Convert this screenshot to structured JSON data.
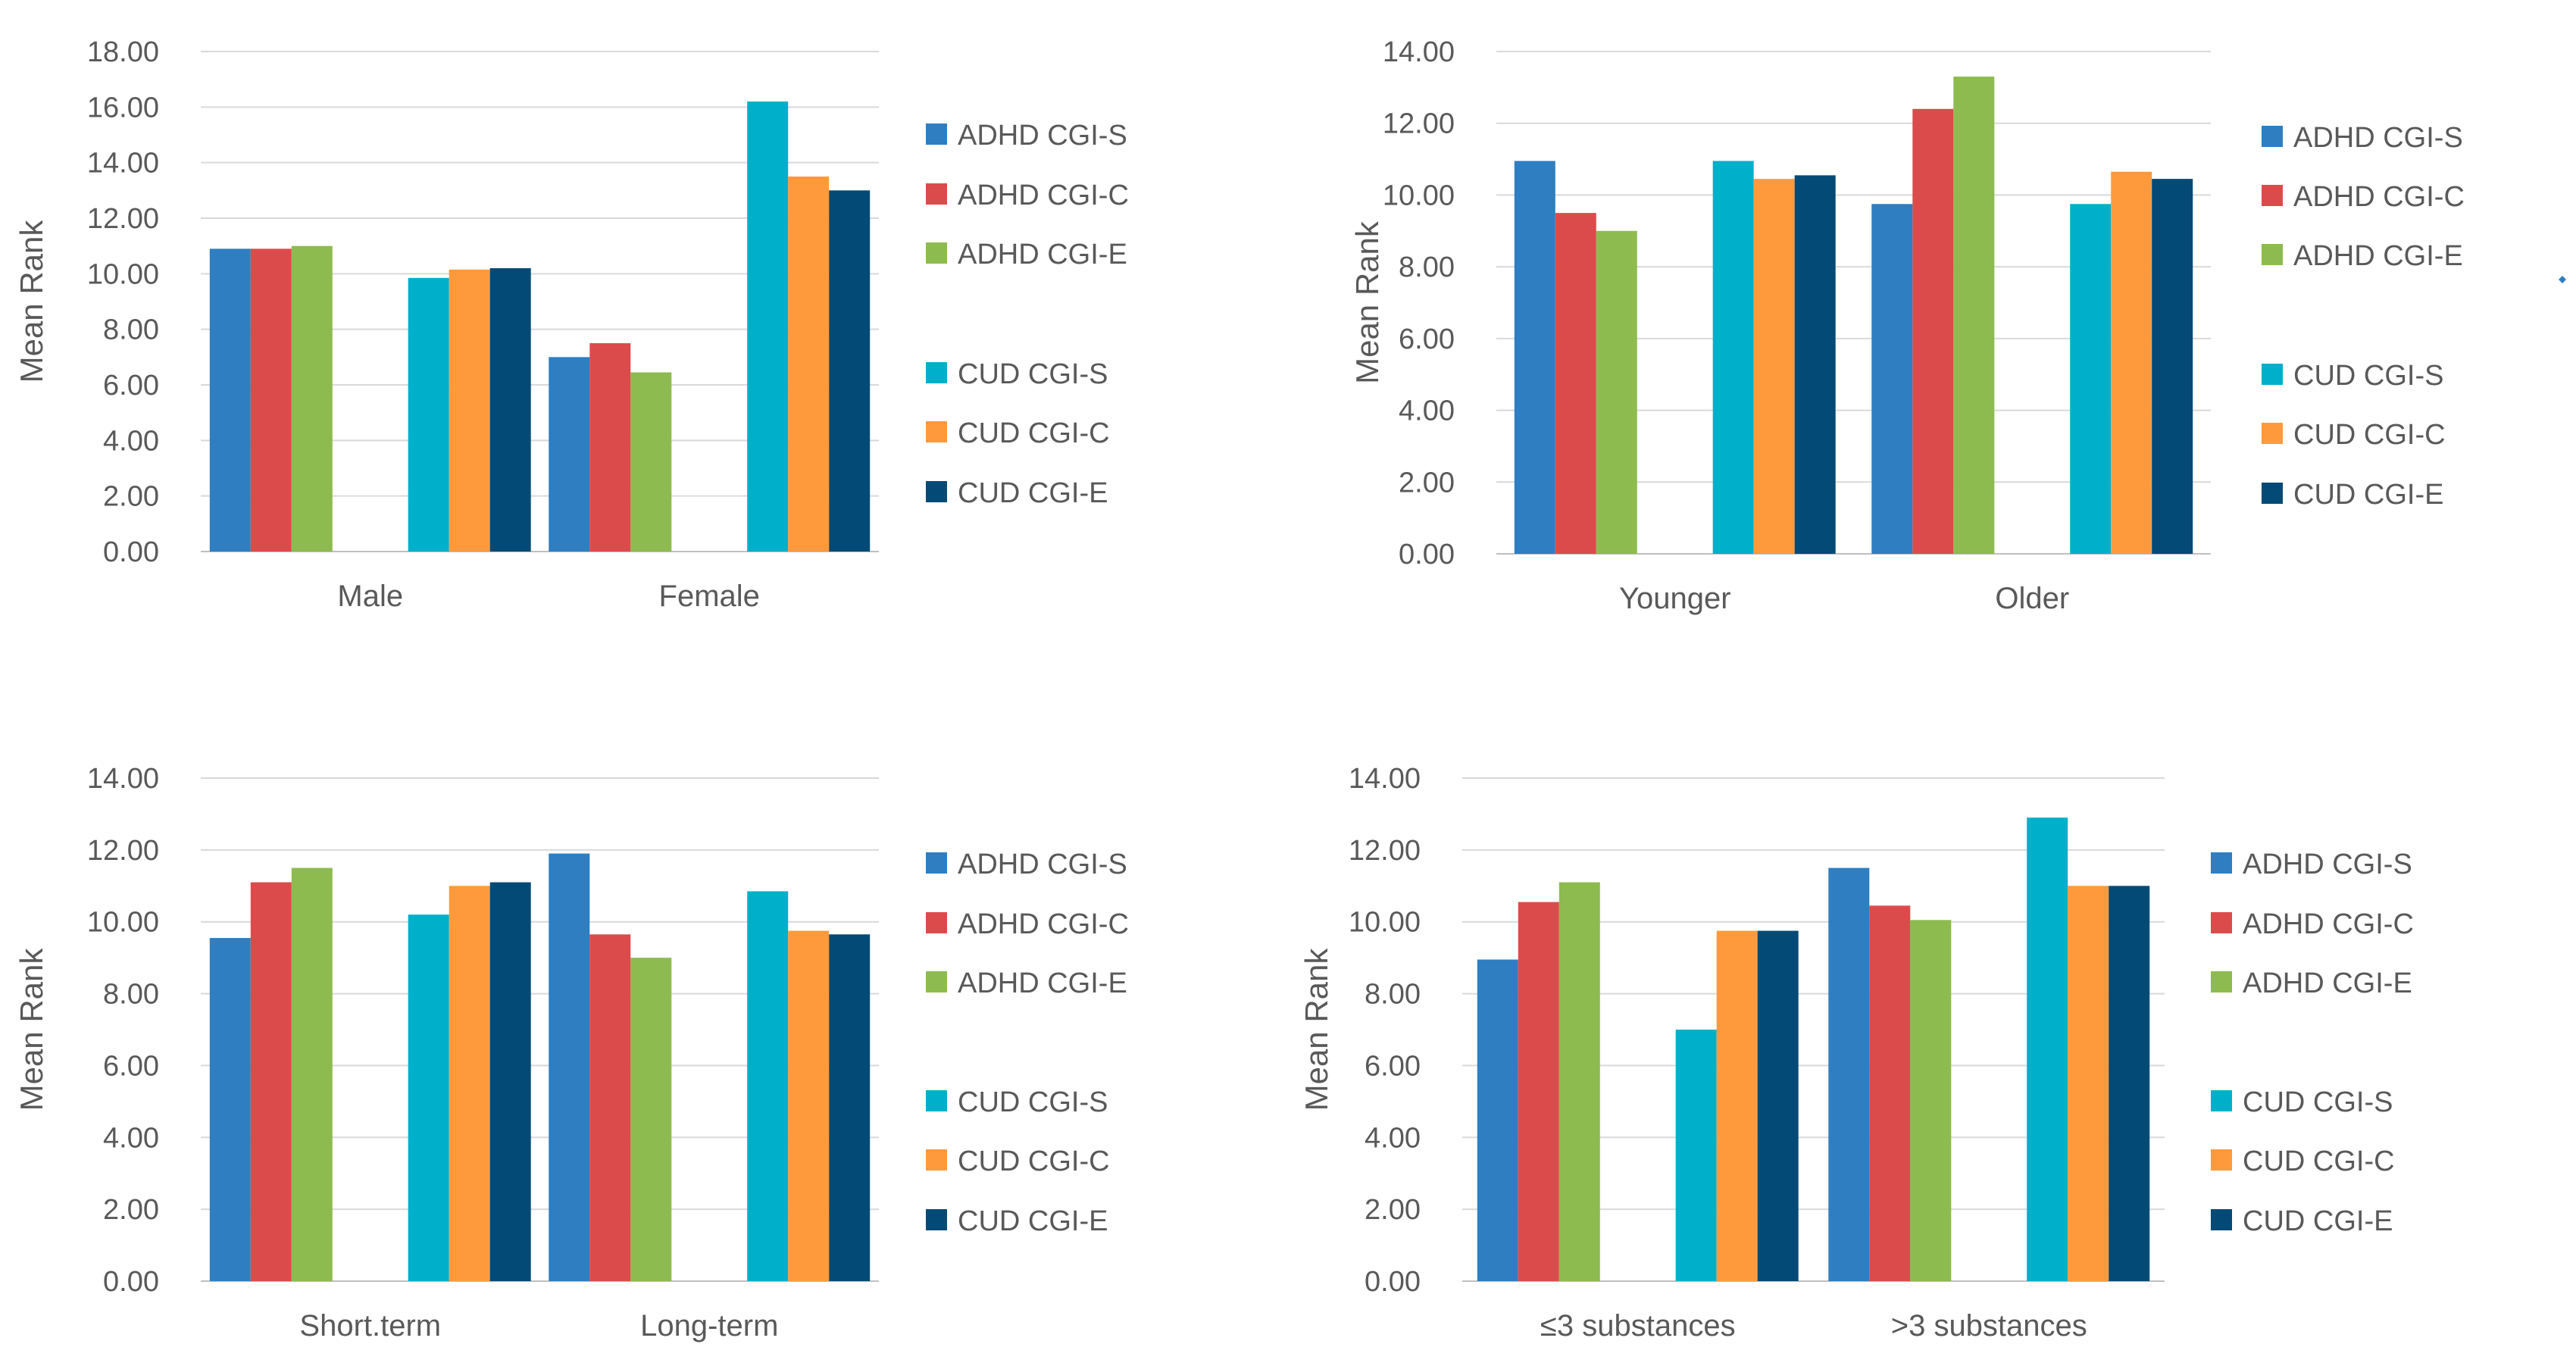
{
  "chart_data": [
    {
      "type": "bar",
      "ylabel": "Mean Rank",
      "ylim": [
        0,
        18
      ],
      "yticks": [
        "0.00",
        "2.00",
        "4.00",
        "6.00",
        "8.00",
        "10.00",
        "12.00",
        "14.00",
        "16.00",
        "18.00"
      ],
      "categories": [
        "Male",
        "Female"
      ],
      "groups": [
        "ADHD",
        "CUD"
      ],
      "series": [
        {
          "name": "ADHD CGI-S",
          "color": "#2E7EC1",
          "values": [
            10.9,
            7.0
          ]
        },
        {
          "name": "ADHD CGI-C",
          "color": "#DC4B4B",
          "values": [
            10.9,
            7.5
          ]
        },
        {
          "name": "ADHD CGI-E",
          "color": "#8DBB4F",
          "values": [
            11.0,
            6.45
          ]
        },
        {
          "name": "CUD CGI-S",
          "color": "#00B0CA",
          "values": [
            9.85,
            16.2
          ]
        },
        {
          "name": "CUD CGI-C",
          "color": "#FF9A3C",
          "values": [
            10.15,
            13.5
          ]
        },
        {
          "name": "CUD CGI-E",
          "color": "#034A76",
          "values": [
            10.2,
            13.0
          ]
        }
      ]
    },
    {
      "type": "bar",
      "ylabel": "Mean Rank",
      "ylim": [
        0,
        14
      ],
      "yticks": [
        "0.00",
        "2.00",
        "4.00",
        "6.00",
        "8.00",
        "10.00",
        "12.00",
        "14.00"
      ],
      "categories": [
        "Younger",
        "Older"
      ],
      "groups": [
        "ADHD",
        "CUD"
      ],
      "series": [
        {
          "name": "ADHD CGI-S",
          "color": "#2E7EC1",
          "values": [
            10.95,
            9.75
          ]
        },
        {
          "name": "ADHD CGI-C",
          "color": "#DC4B4B",
          "values": [
            9.5,
            12.4
          ]
        },
        {
          "name": "ADHD CGI-E",
          "color": "#8DBB4F",
          "values": [
            9.0,
            13.3
          ]
        },
        {
          "name": "CUD CGI-S",
          "color": "#00B0CA",
          "values": [
            10.95,
            9.75
          ]
        },
        {
          "name": "CUD CGI-C",
          "color": "#FF9A3C",
          "values": [
            10.45,
            10.65
          ]
        },
        {
          "name": "CUD CGI-E",
          "color": "#034A76",
          "values": [
            10.55,
            10.45
          ]
        }
      ]
    },
    {
      "type": "bar",
      "ylabel": "Mean Rank",
      "ylim": [
        0,
        14
      ],
      "yticks": [
        "0.00",
        "2.00",
        "4.00",
        "6.00",
        "8.00",
        "10.00",
        "12.00",
        "14.00"
      ],
      "categories": [
        "Short.term",
        "Long-term"
      ],
      "groups": [
        "ADHD",
        "CUD"
      ],
      "series": [
        {
          "name": "ADHD CGI-S",
          "color": "#2E7EC1",
          "values": [
            9.55,
            11.9
          ]
        },
        {
          "name": "ADHD CGI-C",
          "color": "#DC4B4B",
          "values": [
            11.1,
            9.65
          ]
        },
        {
          "name": "ADHD CGI-E",
          "color": "#8DBB4F",
          "values": [
            11.5,
            9.0
          ]
        },
        {
          "name": "CUD CGI-S",
          "color": "#00B0CA",
          "values": [
            10.2,
            10.85
          ]
        },
        {
          "name": "CUD CGI-C",
          "color": "#FF9A3C",
          "values": [
            11.0,
            9.75
          ]
        },
        {
          "name": "CUD CGI-E",
          "color": "#034A76",
          "values": [
            11.1,
            9.65
          ]
        }
      ]
    },
    {
      "type": "bar",
      "ylabel": "Mean Rank",
      "ylim": [
        0,
        14
      ],
      "yticks": [
        "0.00",
        "2.00",
        "4.00",
        "6.00",
        "8.00",
        "10.00",
        "12.00",
        "14.00"
      ],
      "categories": [
        "≤3 substances",
        ">3 substances"
      ],
      "groups": [
        "ADHD",
        "CUD"
      ],
      "series": [
        {
          "name": "ADHD CGI-S",
          "color": "#2E7EC1",
          "values": [
            8.95,
            11.5
          ]
        },
        {
          "name": "ADHD CGI-C",
          "color": "#DC4B4B",
          "values": [
            10.55,
            10.45
          ]
        },
        {
          "name": "ADHD CGI-E",
          "color": "#8DBB4F",
          "values": [
            11.1,
            10.05
          ]
        },
        {
          "name": "CUD CGI-S",
          "color": "#00B0CA",
          "values": [
            7.0,
            12.9
          ]
        },
        {
          "name": "CUD CGI-C",
          "color": "#FF9A3C",
          "values": [
            9.75,
            11.0
          ]
        },
        {
          "name": "CUD CGI-E",
          "color": "#034A76",
          "values": [
            9.75,
            11.0
          ]
        }
      ]
    }
  ]
}
